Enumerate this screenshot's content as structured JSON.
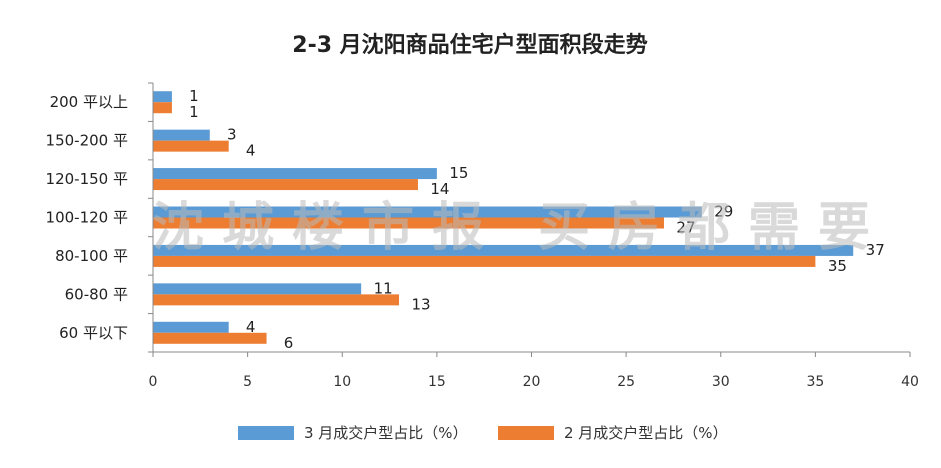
{
  "chart_data": {
    "type": "bar",
    "orientation": "horizontal",
    "title": "2-3 月沈阳商品住宅户型面积段走势",
    "categories": [
      "200 平以上",
      "150-200 平",
      "120-150 平",
      "100-120 平",
      "80-100 平",
      "60-80 平",
      "60 平以下"
    ],
    "series": [
      {
        "name": "3 月成交户型占比（%）",
        "color": "#5b9bd5",
        "values": [
          1,
          3,
          15,
          29,
          37,
          11,
          4
        ]
      },
      {
        "name": "2 月成交户型占比（%）",
        "color": "#ed7d31",
        "values": [
          1,
          4,
          14,
          27,
          35,
          13,
          6
        ]
      }
    ],
    "xlim": [
      0,
      40
    ],
    "x_ticks": [
      0,
      5,
      10,
      15,
      20,
      25,
      30,
      35,
      40
    ],
    "grid": false,
    "legend_position": "bottom",
    "watermark": "沈城楼市报  买房都需要"
  }
}
